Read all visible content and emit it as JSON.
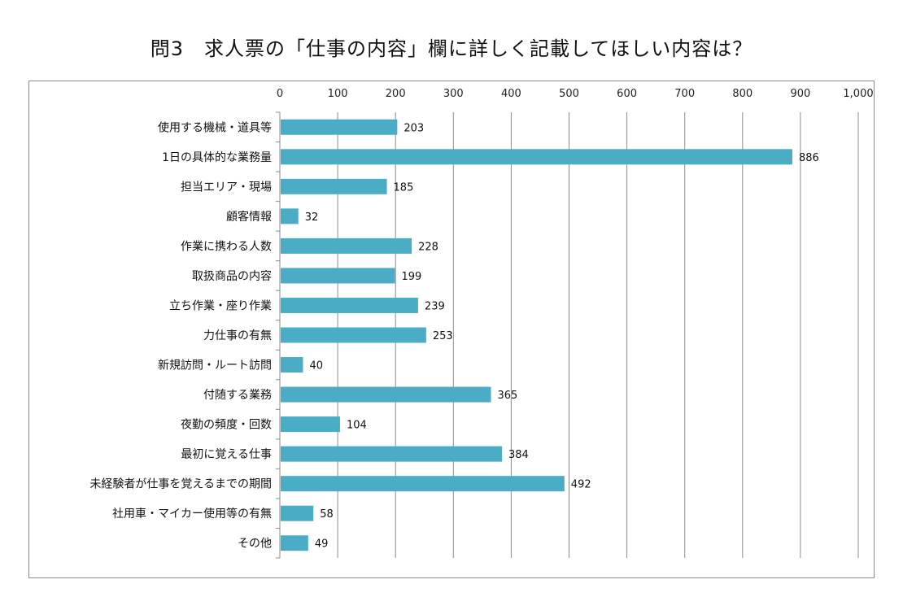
{
  "chart_data": {
    "type": "bar",
    "orientation": "horizontal",
    "title": "問3　求人票の「仕事の内容」欄に詳しく記載してほしい内容は？",
    "xlabel": "",
    "ylabel": "",
    "xlim": [
      0,
      1000
    ],
    "x_ticks": [
      "0",
      "100",
      "200",
      "300",
      "400",
      "500",
      "600",
      "700",
      "800",
      "900",
      "1,000"
    ],
    "x_tick_values": [
      0,
      100,
      200,
      300,
      400,
      500,
      600,
      700,
      800,
      900,
      1000
    ],
    "axis_position": "top",
    "grid": true,
    "legend": "none",
    "bar_color": "#4bacc6",
    "categories": [
      "使用する機械・道具等",
      "1日の具体的な業務量",
      "担当エリア・現場",
      "顧客情報",
      "作業に携わる人数",
      "取扱商品の内容",
      "立ち作業・座り作業",
      "力仕事の有無",
      "新規訪問・ルート訪問",
      "付随する業務",
      "夜勤の頻度・回数",
      "最初に覚える仕事",
      "未経験者が仕事を覚えるまでの期間",
      "社用車・マイカー使用等の有無",
      "その他"
    ],
    "values": [
      203,
      886,
      185,
      32,
      228,
      199,
      239,
      253,
      40,
      365,
      104,
      384,
      492,
      58,
      49
    ]
  }
}
